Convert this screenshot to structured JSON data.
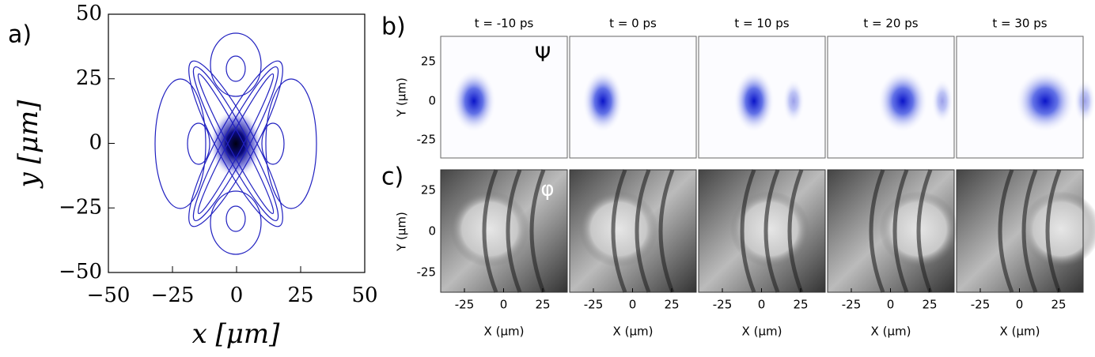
{
  "panel_a": {
    "label": "a)",
    "x_label": "x [μm]",
    "y_label": "y [μm]",
    "x_ticks": [
      "−50",
      "−25",
      "0",
      "25",
      "50"
    ],
    "y_ticks": [
      "50",
      "25",
      "0",
      "−25",
      "−50"
    ]
  },
  "panel_b": {
    "label": "b)",
    "symbol": "Ψ",
    "y_label": "Y (μm)",
    "y_ticks": [
      "25",
      "0",
      "-25"
    ]
  },
  "panel_c": {
    "label": "c)",
    "symbol": "φ",
    "y_label": "Y (μm)",
    "y_ticks": [
      "25",
      "0",
      "-25"
    ],
    "x_label": "X (μm)",
    "x_ticks": [
      "-25",
      "0",
      "25"
    ]
  },
  "times": [
    "t = -10 ps",
    "t = 0 ps",
    "t = 10 ps",
    "t = 20 ps",
    "t = 30 ps"
  ]
}
